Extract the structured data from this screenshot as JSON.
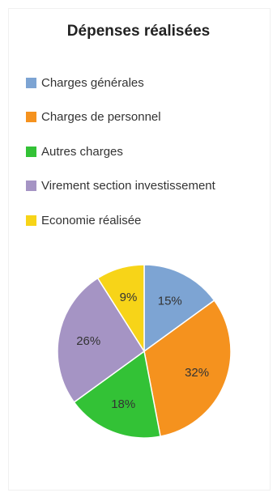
{
  "chart_data": {
    "type": "pie",
    "title": "Dépenses réalisées",
    "legend_position": "top",
    "series": [
      {
        "name": "Charges générales",
        "value": 15,
        "label": "15%",
        "color": "#7da4d3"
      },
      {
        "name": "Charges de personnel",
        "value": 32,
        "label": "32%",
        "color": "#f5921e"
      },
      {
        "name": "Autres charges",
        "value": 18,
        "label": "18%",
        "color": "#33c236"
      },
      {
        "name": "Virement section investissement",
        "value": 26,
        "label": "26%",
        "color": "#a594c4"
      },
      {
        "name": "Economie réalisée",
        "value": 9,
        "label": "9%",
        "color": "#f7d418"
      }
    ]
  }
}
